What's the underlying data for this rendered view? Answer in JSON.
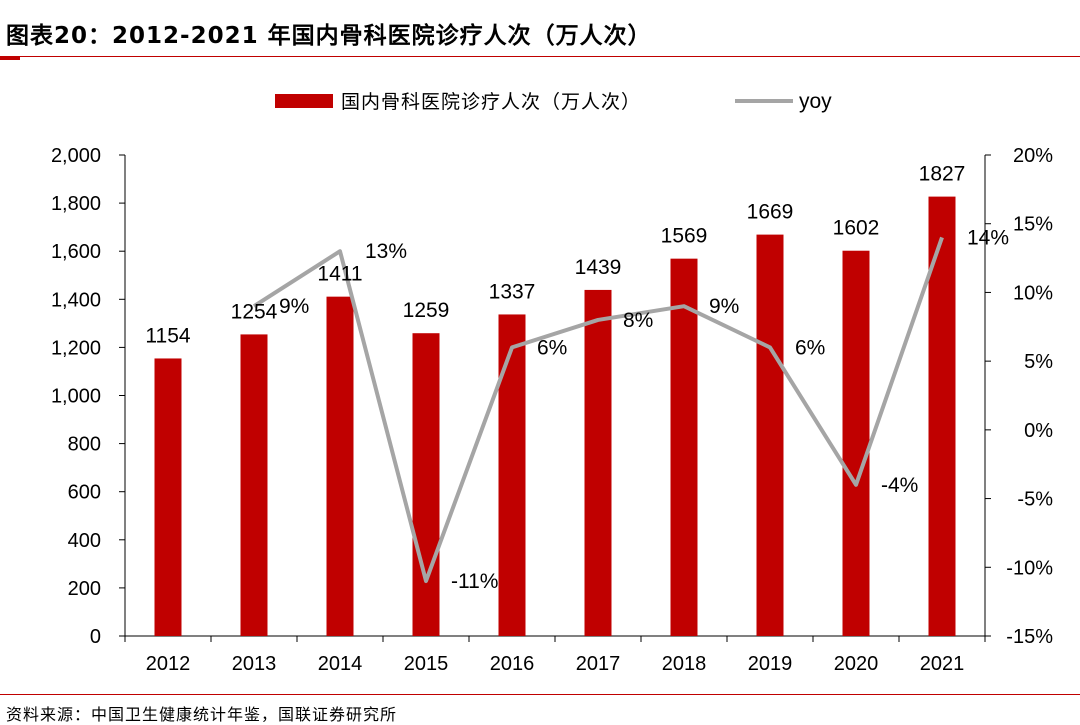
{
  "header": {
    "title": "图表20：2012-2021 年国内骨科医院诊疗人次（万人次）"
  },
  "footer": {
    "source": "资料来源：中国卫生健康统计年鉴，国联证券研究所"
  },
  "colors": {
    "bar": "#c00000",
    "line": "#a5a5a5",
    "rule": "#c00000"
  },
  "chart_data": {
    "type": "bar",
    "categories": [
      "2012",
      "2013",
      "2014",
      "2015",
      "2016",
      "2017",
      "2018",
      "2019",
      "2020",
      "2021"
    ],
    "series": [
      {
        "name": "国内骨科医院诊疗人次（万人次）",
        "kind": "bar",
        "axis": "left",
        "values": [
          1154,
          1254,
          1411,
          1259,
          1337,
          1439,
          1569,
          1669,
          1602,
          1827
        ],
        "labels": [
          "1154",
          "1254",
          "1411",
          "1259",
          "1337",
          "1439",
          "1569",
          "1669",
          "1602",
          "1827"
        ]
      },
      {
        "name": "yoy",
        "kind": "line",
        "axis": "right",
        "values": [
          null,
          9,
          13,
          -11,
          6,
          8,
          9,
          6,
          -4,
          14
        ],
        "labels": [
          "",
          "9%",
          "13%",
          "-11%",
          "6%",
          "8%",
          "9%",
          "6%",
          "-4%",
          "14%"
        ]
      }
    ],
    "left_axis": {
      "range": [
        0,
        2000
      ],
      "ticks": [
        0,
        200,
        400,
        600,
        800,
        1000,
        1200,
        1400,
        1600,
        1800,
        2000
      ],
      "tick_labels": [
        "0",
        "200",
        "400",
        "600",
        "800",
        "1,000",
        "1,200",
        "1,400",
        "1,600",
        "1,800",
        "2,000"
      ]
    },
    "right_axis": {
      "range": [
        -15,
        20
      ],
      "ticks": [
        -15,
        -10,
        -5,
        0,
        5,
        10,
        15,
        20
      ],
      "tick_labels": [
        "-15%",
        "-10%",
        "-5%",
        "0%",
        "5%",
        "10%",
        "15%",
        "20%"
      ]
    },
    "legend": {
      "position": "top-center",
      "entries": [
        "国内骨科医院诊疗人次（万人次）",
        "yoy"
      ]
    },
    "grid": false
  }
}
